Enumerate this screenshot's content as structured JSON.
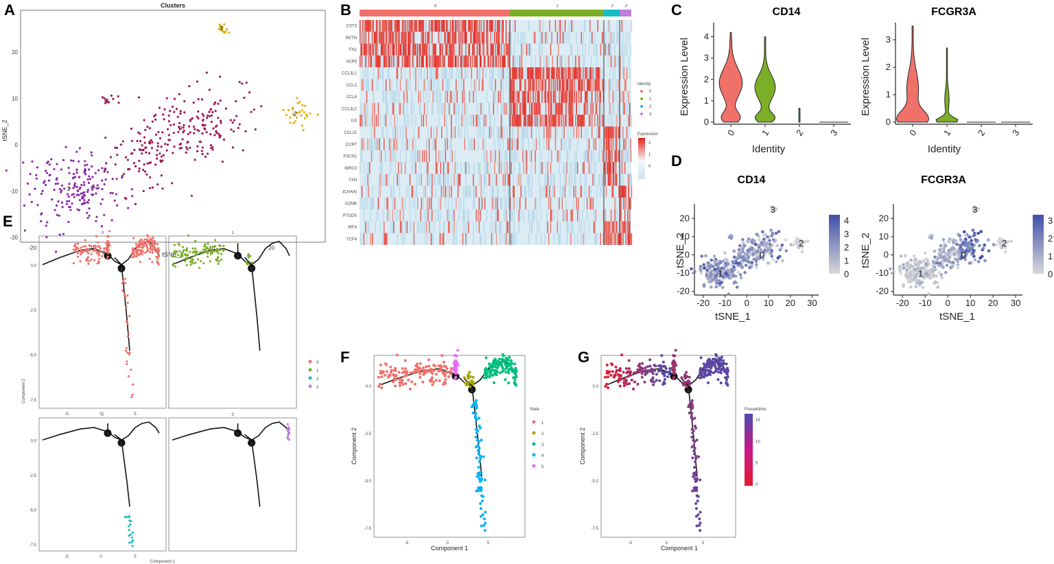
{
  "panel_letters": [
    "A",
    "B",
    "C",
    "D",
    "E",
    "F",
    "G"
  ],
  "colors": {
    "c0": "#f0716a",
    "c1": "#7cae28",
    "c2": "#16bcc3",
    "c3": "#c07de0",
    "clusterA_purple": "#8a2aa8",
    "clusterA_maroon": "#9b1b55",
    "clusterA_gold": "#e3b20c",
    "state1": "#f0716a",
    "state2": "#a3a500",
    "state3": "#00bf7d",
    "state4": "#00b0f6",
    "state5": "#e76bf3",
    "pt_low": "#e6192e",
    "pt_high": "#4b4cad",
    "feat_low": "#d8d8d8",
    "feat_high": "#3f4fa8",
    "heat_low": "#cbe4f0",
    "heat_high": "#e3221c"
  },
  "chart_data": [
    {
      "panel": "A",
      "type": "scatter",
      "title": "Clusters",
      "xlabel": "tSNE_1",
      "ylabel": "tSNE_2",
      "xlim": [
        -22,
        29
      ],
      "ylim": [
        -21,
        29
      ],
      "xticks": [
        "-20",
        "-10",
        "0",
        "10",
        "20"
      ],
      "yticks": [
        "-20",
        "-10",
        "0",
        "10",
        "20"
      ],
      "clusters": [
        {
          "label": "0",
          "center": [
            7,
            3
          ]
        },
        {
          "label": "1",
          "center": [
            -12,
            -10
          ]
        },
        {
          "label": "2",
          "center": [
            24,
            7
          ]
        },
        {
          "label": "3",
          "center": [
            12,
            25
          ]
        }
      ]
    },
    {
      "panel": "B",
      "type": "heatmap",
      "groups": [
        "0",
        "1",
        "2",
        "3"
      ],
      "genes": [
        "CST3",
        "RETN",
        "FN1",
        "ACP5",
        "CCL3L1",
        "CCL3",
        "CCL4",
        "CCL4L2",
        "IL6",
        "CCL22",
        "CCR7",
        "FSCN1",
        "BIRC3",
        "TXN",
        "JCHAIN",
        "GZMB",
        "PTGDS",
        "IRF4",
        "TCF4"
      ],
      "legend_identity_title": "Identity",
      "legend_identity": [
        "0",
        "1",
        "2",
        "3"
      ],
      "legend_expression_title": "Expression",
      "legend_expression_ticks": [
        "2",
        "1",
        "0"
      ]
    },
    {
      "panel": "C",
      "type": "violin",
      "title": "CD14",
      "xlabel": "Identity",
      "ylabel": "Expression Level",
      "categories": [
        "0",
        "1",
        "2",
        "3"
      ],
      "ylim": [
        0,
        4.5
      ],
      "yticks": [
        "0",
        "1",
        "2",
        "3",
        "4"
      ],
      "max_values": [
        4.2,
        4.0,
        0.65,
        0.02
      ]
    },
    {
      "panel": "C",
      "type": "violin",
      "title": "FCGR3A",
      "xlabel": "Identity",
      "ylabel": "Expression Level",
      "categories": [
        "0",
        "1",
        "2",
        "3"
      ],
      "ylim": [
        0,
        3.5
      ],
      "yticks": [
        "0",
        "1",
        "2",
        "3"
      ],
      "max_values": [
        3.5,
        2.7,
        0.02,
        0.02
      ]
    },
    {
      "panel": "D",
      "type": "scatter",
      "title": "CD14",
      "xlabel": "tSNE_1",
      "ylabel": "tSNE_2",
      "xticks": [
        "-20",
        "-10",
        "0",
        "10",
        "20",
        "30"
      ],
      "yticks": [
        "-20",
        "-10",
        "0",
        "10",
        "20"
      ],
      "cluster_labels": [
        "0",
        "1",
        "2",
        "3"
      ],
      "colorbar_ticks": [
        "4",
        "3",
        "2",
        "1",
        "0"
      ]
    },
    {
      "panel": "D",
      "type": "scatter",
      "title": "FCGR3A",
      "xlabel": "tSNE_1",
      "ylabel": "tSNE_2",
      "xticks": [
        "-20",
        "-10",
        "0",
        "10",
        "20",
        "30"
      ],
      "yticks": [
        "-20",
        "-10",
        "0",
        "10",
        "20"
      ],
      "cluster_labels": [
        "0",
        "1",
        "2",
        "3"
      ],
      "colorbar_ticks": [
        "3",
        "2",
        "1",
        "0"
      ]
    },
    {
      "panel": "E",
      "type": "scatter",
      "facets": [
        "0",
        "1",
        "2",
        "3"
      ],
      "xlabel": "Component 1",
      "ylabel": "Component 2",
      "xticks": [
        "-5",
        "0",
        "5"
      ],
      "yticks": [
        "0.0",
        "-2.5",
        "-5.0",
        "-7.5"
      ],
      "legend": [
        "0",
        "1",
        "2",
        "3"
      ],
      "branch_points": [
        "1",
        "2"
      ]
    },
    {
      "panel": "F",
      "type": "scatter",
      "xlabel": "Component 1",
      "ylabel": "Component 2",
      "xticks": [
        "-5",
        "0",
        "5"
      ],
      "yticks": [
        "0.0",
        "-2.5",
        "-5.0",
        "-7.5"
      ],
      "legend_title": "State",
      "legend": [
        "1",
        "2",
        "3",
        "4",
        "5"
      ],
      "branch_points": [
        "1",
        "2"
      ]
    },
    {
      "panel": "G",
      "type": "scatter",
      "xlabel": "Component 1",
      "ylabel": "Component 2",
      "xticks": [
        "-5",
        "0",
        "5"
      ],
      "yticks": [
        "0.0",
        "-2.5",
        "-5.0",
        "-7.5"
      ],
      "legend_title": "Pseudotime",
      "colorbar_ticks": [
        "15",
        "10",
        "5",
        "0"
      ],
      "branch_points": [
        "1",
        "2"
      ]
    }
  ]
}
